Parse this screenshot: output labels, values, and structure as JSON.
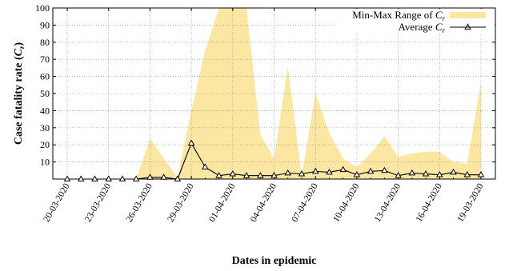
{
  "chart_data": {
    "type": "area",
    "title": "",
    "xlabel": "Dates in epidemic",
    "ylabel": "Case fatality rate (C_r)",
    "ylim": [
      0,
      100
    ],
    "yticks": [
      10,
      20,
      30,
      40,
      50,
      60,
      70,
      80,
      90,
      100
    ],
    "grid": true,
    "legend_position": "top-right",
    "x": [
      "20-03-2020",
      "21-03-2020",
      "22-03-2020",
      "23-03-2020",
      "24-03-2020",
      "25-03-2020",
      "26-03-2020",
      "27-03-2020",
      "28-03-2020",
      "29-03-2020",
      "30-03-2020",
      "31-03-2020",
      "01-04-2020",
      "02-04-2020",
      "03-04-2020",
      "04-04-2020",
      "05-04-2020",
      "06-04-2020",
      "07-04-2020",
      "08-04-2020",
      "09-04-2020",
      "10-04-2020",
      "11-04-2020",
      "12-04-2020",
      "13-04-2020",
      "14-04-2020",
      "15-04-2020",
      "16-04-2020",
      "17-04-2020",
      "18-04-2020",
      "19-03-2020"
    ],
    "x_tick_labels": [
      "20-03-2020",
      "23-03-2020",
      "26-03-2020",
      "29-03-2020",
      "01-04-2020",
      "04-04-2020",
      "07-04-2020",
      "10-04-2020",
      "13-04-2020",
      "16-04-2020",
      "19-03-2020"
    ],
    "x_tick_every": 3,
    "series": [
      {
        "name": "Min-Max Range of C_r",
        "kind": "range",
        "color": "#fbe7a1",
        "min": [
          0,
          0,
          0,
          0,
          0,
          0,
          0,
          0,
          0,
          0,
          0,
          0,
          0,
          0,
          0,
          0,
          0,
          0,
          0,
          0,
          0,
          0,
          0,
          0,
          0,
          0,
          0,
          0,
          0,
          0,
          0
        ],
        "max": [
          0,
          0,
          0,
          0,
          0,
          0,
          24,
          12,
          1,
          40,
          75,
          100,
          100,
          100,
          26,
          12,
          66,
          2,
          50,
          27,
          12,
          7,
          15,
          25,
          13,
          15,
          16,
          16,
          10,
          9,
          57
        ]
      },
      {
        "name": "Average C_r",
        "kind": "line",
        "color": "#000000",
        "marker": "triangle",
        "values": [
          0,
          0,
          0,
          0,
          0,
          0,
          1,
          1,
          0,
          21,
          7,
          2,
          3,
          2,
          2,
          2,
          3.5,
          3,
          4.5,
          4,
          5.5,
          2.5,
          4.5,
          5,
          2,
          3.5,
          3,
          2.5,
          4,
          2.5,
          2.5
        ]
      }
    ]
  }
}
